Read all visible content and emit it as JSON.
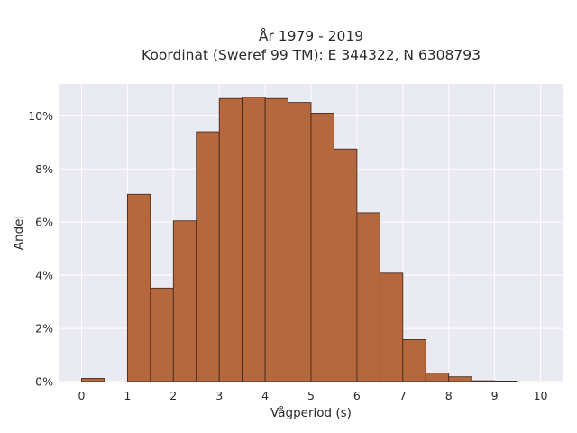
{
  "chart_data": {
    "type": "bar",
    "title_line1": "År 1979 - 2019",
    "title_line2": "Koordinat (Sweref 99 TM): E 344322, N 6308793",
    "xlabel": "Vågperiod (s)",
    "ylabel": "Andel",
    "xlim": [
      -0.5,
      10.5
    ],
    "ylim": [
      0,
      11.2
    ],
    "x_ticks": [
      0,
      1,
      2,
      3,
      4,
      5,
      6,
      7,
      8,
      9,
      10
    ],
    "x_tick_labels": [
      "0",
      "1",
      "2",
      "3",
      "4",
      "5",
      "6",
      "7",
      "8",
      "9",
      "10"
    ],
    "y_ticks": [
      0,
      2,
      4,
      6,
      8,
      10
    ],
    "y_tick_labels": [
      "0%",
      "2%",
      "4%",
      "6%",
      "8%",
      "10%"
    ],
    "bin_width": 0.5,
    "bin_starts": [
      0,
      0.5,
      1,
      1.5,
      2,
      2.5,
      3,
      3.5,
      4,
      4.5,
      5,
      5.5,
      6,
      6.5,
      7,
      7.5,
      8,
      8.5,
      9,
      9.5
    ],
    "values": [
      0.12,
      0,
      7.05,
      3.52,
      6.05,
      9.4,
      10.65,
      10.7,
      10.65,
      10.5,
      10.1,
      8.75,
      6.35,
      4.08,
      1.58,
      0.32,
      0.18,
      0.03,
      0.02,
      0
    ],
    "grid": true,
    "colors": {
      "bar_fill": "#b5683e",
      "bar_stroke": "#3a2418",
      "plot_background": "#eaeaf2",
      "grid": "#ffffff"
    }
  }
}
